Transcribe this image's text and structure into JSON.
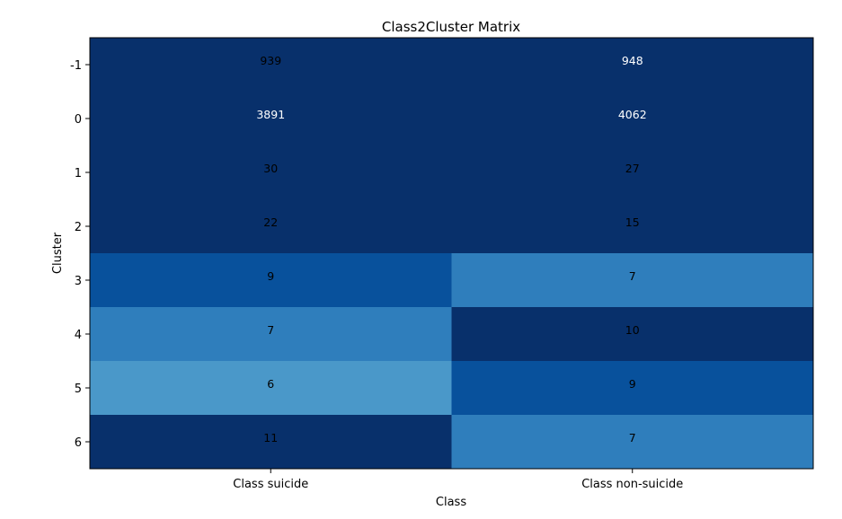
{
  "chart_data": {
    "type": "heatmap",
    "title": "Class2Cluster Matrix",
    "xlabel": "Class",
    "ylabel": "Cluster",
    "x_categories": [
      "Class suicide",
      "Class non-suicide"
    ],
    "y_categories": [
      "-1",
      "0",
      "1",
      "2",
      "3",
      "4",
      "5",
      "6"
    ],
    "values": [
      [
        939,
        948
      ],
      [
        3891,
        4062
      ],
      [
        30,
        27
      ],
      [
        22,
        15
      ],
      [
        9,
        7
      ],
      [
        7,
        10
      ],
      [
        6,
        9
      ],
      [
        11,
        7
      ]
    ],
    "cell_colors": [
      [
        "#08306b",
        "#08306b"
      ],
      [
        "#08306b",
        "#08306b"
      ],
      [
        "#08306b",
        "#08306b"
      ],
      [
        "#08306b",
        "#08306b"
      ],
      [
        "#08519c",
        "#2f7ebc"
      ],
      [
        "#2f7ebc",
        "#08306b"
      ],
      [
        "#4a98c9",
        "#08519c"
      ],
      [
        "#08306b",
        "#2f7ebc"
      ]
    ],
    "text_colors": [
      [
        "#000000",
        "#ffffff"
      ],
      [
        "#ffffff",
        "#ffffff"
      ],
      [
        "#000000",
        "#000000"
      ],
      [
        "#000000",
        "#000000"
      ],
      [
        "#000000",
        "#000000"
      ],
      [
        "#000000",
        "#000000"
      ],
      [
        "#000000",
        "#000000"
      ],
      [
        "#000000",
        "#000000"
      ]
    ],
    "colormap": "Blues",
    "grid": false,
    "legend": "none"
  }
}
